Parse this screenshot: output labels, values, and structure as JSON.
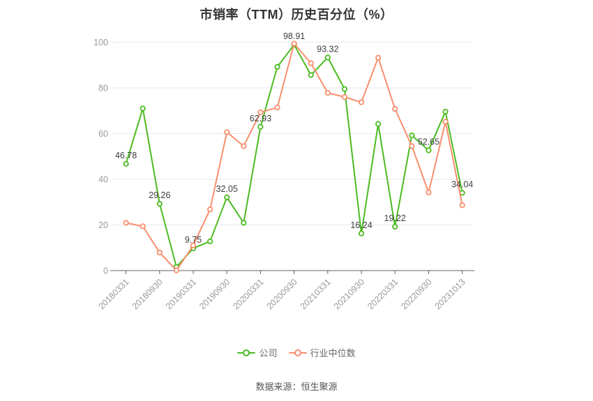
{
  "title": "市销率（TTM）历史百分位（%）",
  "footer": "数据来源：恒生聚源",
  "colors": {
    "company_green": "#4CBB22",
    "industry_orange": "#F98E6D",
    "gridline": "#E2E8F2",
    "axis_line": "#606060",
    "tick_label": "#999999",
    "data_label": "#3d3d3d",
    "title_text": "#333333"
  },
  "legend": [
    {
      "label": "公司",
      "color": "#4CBB22"
    },
    {
      "label": "行业中位数",
      "color": "#F98E6D"
    }
  ],
  "chart_data": {
    "type": "line",
    "title": "市销率（TTM）历史百分位（%）",
    "xlabel": "",
    "ylabel": "",
    "ylim": [
      0,
      100
    ],
    "y_ticks": [
      0,
      20,
      40,
      60,
      80,
      100
    ],
    "grid": true,
    "legend_position": "bottom",
    "x_tick_labels": [
      "20180331",
      "20180930",
      "20190331",
      "20190930",
      "20200331",
      "20200930",
      "20210331",
      "20210930",
      "20220331",
      "20220930",
      "20231013"
    ],
    "series": [
      {
        "name": "公司",
        "color": "#4CBB22",
        "values": [
          46.78,
          71.0,
          29.26,
          1.6,
          9.75,
          12.8,
          32.05,
          20.9,
          62.93,
          89.2,
          98.91,
          85.6,
          93.32,
          79.5,
          16.24,
          64.2,
          19.22,
          59.2,
          52.65,
          69.6,
          34.04
        ],
        "point_labels": {
          "0": "46.78",
          "2": "29.26",
          "4": "9.75",
          "6": "32.05",
          "8": "62.93",
          "10": "98.91",
          "12": "93.32",
          "14": "16.24",
          "16": "19.22",
          "18": "52.65",
          "20": "34.04"
        }
      },
      {
        "name": "行业中位数",
        "color": "#F98E6D",
        "values": [
          20.9,
          19.4,
          7.9,
          0.1,
          11.0,
          26.8,
          60.6,
          54.5,
          69.3,
          71.4,
          99.4,
          90.8,
          77.8,
          76.0,
          73.7,
          93.2,
          70.8,
          54.5,
          34.2,
          65.2,
          28.6
        ],
        "point_labels": {}
      }
    ]
  }
}
